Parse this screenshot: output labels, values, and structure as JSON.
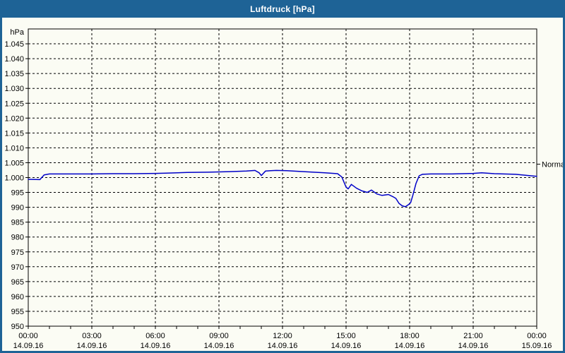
{
  "window": {
    "title": "Luftdruck [hPa]"
  },
  "colors": {
    "titlebar_bg": "#1E6396",
    "titlebar_text": "#FFFFFF",
    "window_bg": "#FBFCF4",
    "grid": "#000000",
    "axis_text": "#000000",
    "line": "#0000C8"
  },
  "chart_data": {
    "type": "line",
    "title": "Luftdruck [hPa]",
    "unit_label": "hPa",
    "grid": "dashed",
    "x_axis": {
      "range_hours": [
        0,
        24
      ],
      "minor_tick_hours": 1,
      "major_tick_hours": 3,
      "ticks": [
        {
          "h": 0,
          "time": "00:00",
          "date": "14.09.16"
        },
        {
          "h": 3,
          "time": "03:00",
          "date": "14.09.16"
        },
        {
          "h": 6,
          "time": "06:00",
          "date": "14.09.16"
        },
        {
          "h": 9,
          "time": "09:00",
          "date": "14.09.16"
        },
        {
          "h": 12,
          "time": "12:00",
          "date": "14.09.16"
        },
        {
          "h": 15,
          "time": "15:00",
          "date": "14.09.16"
        },
        {
          "h": 18,
          "time": "18:00",
          "date": "14.09.16"
        },
        {
          "h": 21,
          "time": "21:00",
          "date": "14.09.16"
        },
        {
          "h": 24,
          "time": "00:00",
          "date": "15.09.16"
        }
      ]
    },
    "y_axis": {
      "range": [
        950,
        1050
      ],
      "step": 5,
      "ticks": [
        {
          "value": 1045,
          "label": "1.045"
        },
        {
          "value": 1040,
          "label": "1.040"
        },
        {
          "value": 1035,
          "label": "1.035"
        },
        {
          "value": 1030,
          "label": "1.030"
        },
        {
          "value": 1025,
          "label": "1.025"
        },
        {
          "value": 1020,
          "label": "1.020"
        },
        {
          "value": 1015,
          "label": "1.015"
        },
        {
          "value": 1010,
          "label": "1.010"
        },
        {
          "value": 1005,
          "label": "1.005"
        },
        {
          "value": 1000,
          "label": "1.000"
        },
        {
          "value": 995,
          "label": "995"
        },
        {
          "value": 990,
          "label": "990"
        },
        {
          "value": 985,
          "label": "985"
        },
        {
          "value": 980,
          "label": "980"
        },
        {
          "value": 975,
          "label": "975"
        },
        {
          "value": 970,
          "label": "970"
        },
        {
          "value": 965,
          "label": "965"
        },
        {
          "value": 960,
          "label": "960"
        },
        {
          "value": 955,
          "label": "955"
        },
        {
          "value": 950,
          "label": "950"
        }
      ]
    },
    "annotation": {
      "label": "Normal",
      "value": 1004.5
    },
    "series": [
      {
        "name": "Luftdruck",
        "color": "#0000C8",
        "points": [
          [
            0.0,
            999.4
          ],
          [
            0.55,
            999.3
          ],
          [
            0.75,
            1000.9
          ],
          [
            1.0,
            1001.2
          ],
          [
            2.0,
            1001.2
          ],
          [
            3.0,
            1001.2
          ],
          [
            4.0,
            1001.3
          ],
          [
            5.0,
            1001.3
          ],
          [
            6.0,
            1001.4
          ],
          [
            6.5,
            1001.5
          ],
          [
            7.5,
            1001.7
          ],
          [
            8.5,
            1001.8
          ],
          [
            9.5,
            1002.0
          ],
          [
            10.3,
            1002.2
          ],
          [
            10.7,
            1002.4
          ],
          [
            10.9,
            1001.6
          ],
          [
            11.0,
            1000.7
          ],
          [
            11.2,
            1002.2
          ],
          [
            11.7,
            1002.4
          ],
          [
            12.2,
            1002.3
          ],
          [
            13.0,
            1002.0
          ],
          [
            14.0,
            1001.6
          ],
          [
            14.6,
            1001.3
          ],
          [
            14.8,
            1000.2
          ],
          [
            15.0,
            996.8
          ],
          [
            15.1,
            996.2
          ],
          [
            15.25,
            997.7
          ],
          [
            15.5,
            996.4
          ],
          [
            15.75,
            995.5
          ],
          [
            16.0,
            995.0
          ],
          [
            16.2,
            995.8
          ],
          [
            16.45,
            994.5
          ],
          [
            16.7,
            994.0
          ],
          [
            17.0,
            994.3
          ],
          [
            17.2,
            993.6
          ],
          [
            17.35,
            993.0
          ],
          [
            17.5,
            991.3
          ],
          [
            17.65,
            990.5
          ],
          [
            17.8,
            990.2
          ],
          [
            17.95,
            990.9
          ],
          [
            18.05,
            991.6
          ],
          [
            18.15,
            994.0
          ],
          [
            18.3,
            998.0
          ],
          [
            18.45,
            1000.6
          ],
          [
            18.6,
            1001.1
          ],
          [
            19.0,
            1001.2
          ],
          [
            20.0,
            1001.2
          ],
          [
            21.0,
            1001.4
          ],
          [
            21.4,
            1001.6
          ],
          [
            22.0,
            1001.3
          ],
          [
            23.0,
            1001.1
          ],
          [
            23.6,
            1000.7
          ],
          [
            24.0,
            1000.4
          ]
        ]
      }
    ]
  }
}
